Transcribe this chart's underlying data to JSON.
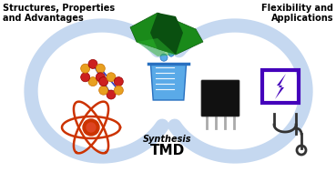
{
  "bg_color": "#ffffff",
  "title_left_line1": "Structures, Properties",
  "title_left_line2": "and Advantages",
  "title_right_line1": "Flexibility and",
  "title_right_line2": "Applications",
  "label_synthesis": "Synthesis",
  "label_tmd": "TMD",
  "arrow_color": "#c5d8f0",
  "arrow_lw": 12,
  "fig_width": 3.69,
  "fig_height": 1.89,
  "dpi": 100
}
